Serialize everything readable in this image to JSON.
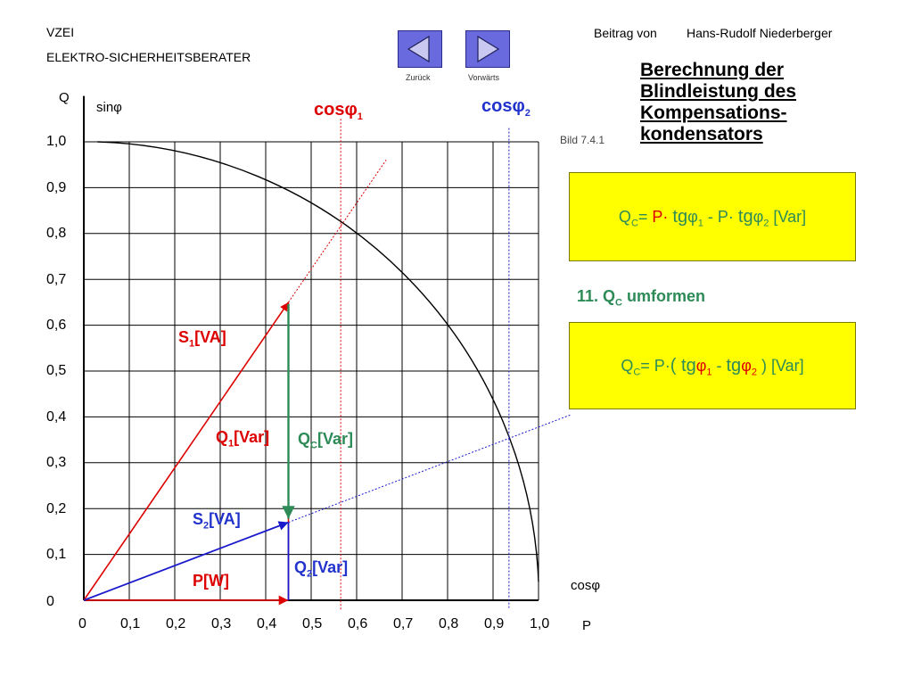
{
  "header": {
    "org": "VZEI",
    "subtitle": "ELEKTRO-SICHERHEITSBERATER",
    "contrib_prefix": "Beitrag von",
    "author": "Hans-Rudolf Niederberger"
  },
  "nav": {
    "back_label": "Zurück",
    "forward_label": "Vorwärts"
  },
  "title_lines": [
    "Berechnung der",
    "Blindleistung des",
    "Kompensations-",
    "kondensators"
  ],
  "figure_ref": "Bild 7.4.1",
  "formula1": {
    "q": "Q",
    "q_sub": "C",
    "eq": "= ",
    "p1": "P· ",
    "tg1": "tg",
    "phi1": "φ",
    "n1": "1",
    "minus": " - P· ",
    "tg2": "tg",
    "phi2": "φ",
    "n2": "2",
    "unit": " [Var]"
  },
  "step": {
    "num": "11. ",
    "q": "Q",
    "q_sub": "C",
    "text": " umformen"
  },
  "formula2": {
    "q": "Q",
    "q_sub": "C",
    "eq": "= ",
    "p": "P·",
    "open": "( ",
    "tg1": "tg",
    "phi1": "φ",
    "n1": "1",
    "minus": " -  ",
    "tg2": "tg",
    "phi2": "φ",
    "n2": "2",
    "close": " ) [Var]"
  },
  "axes": {
    "y_name": "Q",
    "sin_label": "sinφ",
    "cos_label": "cosφ",
    "x_name": "P",
    "x_ticks": [
      "0",
      "0,1",
      "0,2",
      "0,3",
      "0,4",
      "0,5",
      "0,6",
      "0,7",
      "0,8",
      "0,9",
      "1,0"
    ],
    "y_ticks": [
      "0",
      "0,1",
      "0,2",
      "0,3",
      "0,4",
      "0,5",
      "0,6",
      "0,7",
      "0,8",
      "0,9",
      "1,0"
    ]
  },
  "labels": {
    "cos1": {
      "t": "cos",
      "s": "φ",
      "n": "1"
    },
    "cos2": {
      "t": "cos",
      "s": "φ",
      "n": "2"
    },
    "s1": {
      "t": "S",
      "n": "1",
      "u": "[VA]"
    },
    "q1": {
      "t": "Q",
      "n": "1",
      "u": "[Var]"
    },
    "qc": {
      "t": "Q",
      "n": "C",
      "u": "[Var]"
    },
    "s2": {
      "t": "S",
      "n": "2",
      "u": "[VA]"
    },
    "q2": {
      "t": "Q",
      "n": "2",
      "u": "[Var]"
    },
    "p": "P[W]"
  },
  "colors": {
    "s1": "#dd0000",
    "s2": "#1a1acc",
    "qc": "#2e8b57",
    "p": "#dd0000",
    "yellow": "#ffff00"
  },
  "diagram": {
    "P": 0.45,
    "Q1": 0.65,
    "Q2": 0.17,
    "cos_phi1": 0.565,
    "cos_phi2": 0.935,
    "x_range": [
      0,
      1.0
    ],
    "y_range": [
      0,
      1.0
    ]
  }
}
